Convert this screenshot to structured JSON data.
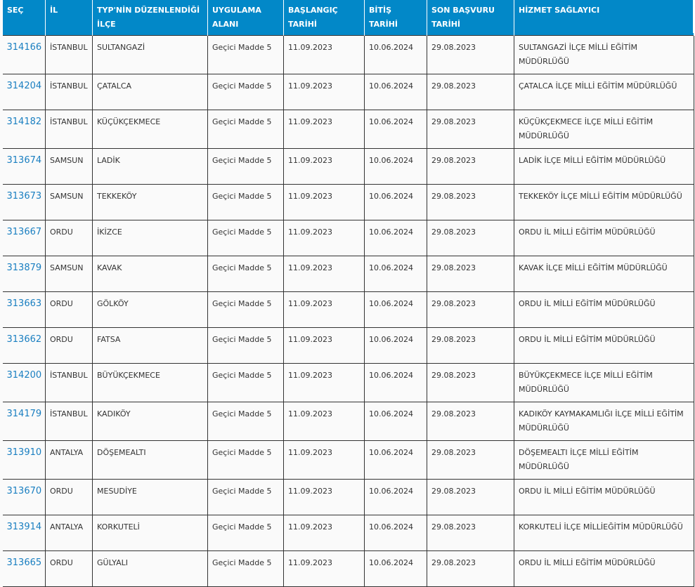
{
  "headers": [
    "SEÇ",
    "İL",
    "TYP'NİN DÜZENLENDİĞİ İLÇE",
    "UYGULAMA ALANI",
    "BAŞLANGIÇ TARİHİ",
    "BİTİŞ TARİHİ",
    "SON BAŞVURU TARİHİ",
    "HİZMET SAĞLAYICI"
  ],
  "colors": {
    "header_bg": "#0288c8",
    "link": "#1a7fc1"
  },
  "rows": [
    {
      "sec": "314166",
      "il": "İSTANBUL",
      "ilce": "SULTANGAZİ",
      "alan": "Geçici Madde 5",
      "baslangic": "11.09.2023",
      "bitis": "10.06.2024",
      "son": "29.08.2023",
      "saglayici": "SULTANGAZİ İLÇE MİLLİ EĞİTİM MÜDÜRLÜĞÜ"
    },
    {
      "sec": "314204",
      "il": "İSTANBUL",
      "ilce": "ÇATALCA",
      "alan": "Geçici Madde 5",
      "baslangic": "11.09.2023",
      "bitis": "10.06.2024",
      "son": "29.08.2023",
      "saglayici": "ÇATALCA İLÇE MİLLİ EĞİTİM MÜDÜRLÜĞÜ"
    },
    {
      "sec": "314182",
      "il": "İSTANBUL",
      "ilce": "KÜÇÜKÇEKMECE",
      "alan": "Geçici Madde 5",
      "baslangic": "11.09.2023",
      "bitis": "10.06.2024",
      "son": "29.08.2023",
      "saglayici": "KÜÇÜKÇEKMECE İLÇE MİLLİ EĞİTİM MÜDÜRLÜĞÜ"
    },
    {
      "sec": "313674",
      "il": "SAMSUN",
      "ilce": "LADİK",
      "alan": "Geçici Madde 5",
      "baslangic": "11.09.2023",
      "bitis": "10.06.2024",
      "son": "29.08.2023",
      "saglayici": "LADİK İLÇE MİLLİ EĞİTİM MÜDÜRLÜĞÜ"
    },
    {
      "sec": "313673",
      "il": "SAMSUN",
      "ilce": "TEKKEKÖY",
      "alan": "Geçici Madde 5",
      "baslangic": "11.09.2023",
      "bitis": "10.06.2024",
      "son": "29.08.2023",
      "saglayici": "TEKKEKÖY İLÇE MİLLİ EĞİTİM MÜDÜRLÜĞÜ"
    },
    {
      "sec": "313667",
      "il": "ORDU",
      "ilce": "İKİZCE",
      "alan": "Geçici Madde 5",
      "baslangic": "11.09.2023",
      "bitis": "10.06.2024",
      "son": "29.08.2023",
      "saglayici": "ORDU İL MİLLİ EĞİTİM MÜDÜRLÜĞÜ"
    },
    {
      "sec": "313879",
      "il": "SAMSUN",
      "ilce": "KAVAK",
      "alan": "Geçici Madde 5",
      "baslangic": "11.09.2023",
      "bitis": "10.06.2024",
      "son": "29.08.2023",
      "saglayici": "KAVAK İLÇE MİLLİ EĞİTİM MÜDÜRLÜĞÜ"
    },
    {
      "sec": "313663",
      "il": "ORDU",
      "ilce": "GÖLKÖY",
      "alan": "Geçici Madde 5",
      "baslangic": "11.09.2023",
      "bitis": "10.06.2024",
      "son": "29.08.2023",
      "saglayici": "ORDU İL MİLLİ EĞİTİM MÜDÜRLÜĞÜ"
    },
    {
      "sec": "313662",
      "il": "ORDU",
      "ilce": "FATSA",
      "alan": "Geçici Madde 5",
      "baslangic": "11.09.2023",
      "bitis": "10.06.2024",
      "son": "29.08.2023",
      "saglayici": "ORDU İL MİLLİ EĞİTİM MÜDÜRLÜĞÜ"
    },
    {
      "sec": "314200",
      "il": "İSTANBUL",
      "ilce": "BÜYÜKÇEKMECE",
      "alan": "Geçici Madde 5",
      "baslangic": "11.09.2023",
      "bitis": "10.06.2024",
      "son": "29.08.2023",
      "saglayici": "BÜYÜKÇEKMECE İLÇE MİLLİ EĞİTİM MÜDÜRLÜĞÜ"
    },
    {
      "sec": "314179",
      "il": "İSTANBUL",
      "ilce": "KADIKÖY",
      "alan": "Geçici Madde 5",
      "baslangic": "11.09.2023",
      "bitis": "10.06.2024",
      "son": "29.08.2023",
      "saglayici": "KADIKÖY KAYMAKAMLIĞI İLÇE MİLLİ EĞİTİM MÜDÜRLÜĞÜ"
    },
    {
      "sec": "313910",
      "il": "ANTALYA",
      "ilce": "DÖŞEMEALTI",
      "alan": "Geçici Madde 5",
      "baslangic": "11.09.2023",
      "bitis": "10.06.2024",
      "son": "29.08.2023",
      "saglayici": "DÖŞEMEALTI İLÇE MİLLİ EĞİTİM MÜDÜRLÜĞÜ"
    },
    {
      "sec": "313670",
      "il": "ORDU",
      "ilce": "MESUDİYE",
      "alan": "Geçici Madde 5",
      "baslangic": "11.09.2023",
      "bitis": "10.06.2024",
      "son": "29.08.2023",
      "saglayici": "ORDU İL MİLLİ EĞİTİM MÜDÜRLÜĞÜ"
    },
    {
      "sec": "313914",
      "il": "ANTALYA",
      "ilce": "KORKUTELİ",
      "alan": "Geçici Madde 5",
      "baslangic": "11.09.2023",
      "bitis": "10.06.2024",
      "son": "29.08.2023",
      "saglayici": "KORKUTELİ İLÇE MİLLİEĞİTİM MÜDÜRLÜĞÜ"
    },
    {
      "sec": "313665",
      "il": "ORDU",
      "ilce": "GÜLYALI",
      "alan": "Geçici Madde 5",
      "baslangic": "11.09.2023",
      "bitis": "10.06.2024",
      "son": "29.08.2023",
      "saglayici": "ORDU İL MİLLİ EĞİTİM MÜDÜRLÜĞÜ"
    }
  ]
}
